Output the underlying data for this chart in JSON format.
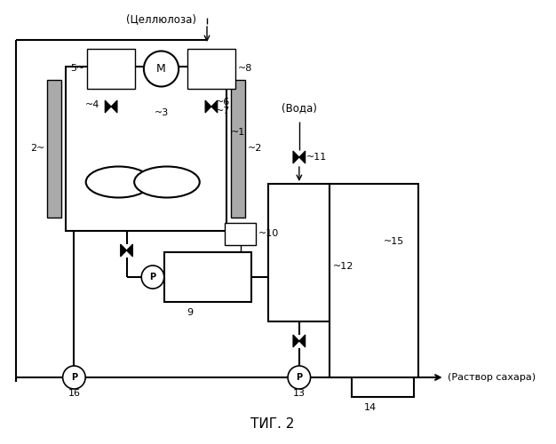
{
  "title": "ΤИГ. 2",
  "label_cellulose": "(Целлюлоза)",
  "label_water": "(Вода)",
  "label_sugar": "(Раствор сахара)",
  "bg_color": "#ffffff",
  "line_color": "#000000"
}
